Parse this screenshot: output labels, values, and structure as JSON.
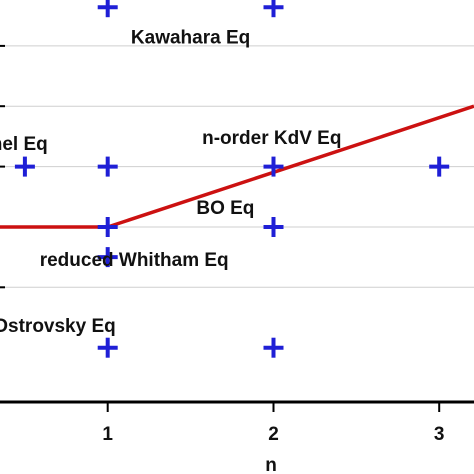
{
  "chart_data": {
    "type": "scatter",
    "title": "",
    "xlabel": "n",
    "ylabel": "",
    "xlim": [
      0.35,
      3.21
    ],
    "ylim": [
      -0.95,
      2.38
    ],
    "x_ticks": [
      {
        "value": 1,
        "label": "1"
      },
      {
        "value": 2,
        "label": "2"
      },
      {
        "value": 3,
        "label": "3"
      }
    ],
    "y_gridlines": [
      0,
      0.5,
      1,
      1.5,
      2
    ],
    "grid": "horizontal",
    "colors": {
      "markers": "#1f1fd6",
      "line": "#cc1111",
      "grid": "#cfcfcf",
      "axis": "#000000"
    },
    "points": [
      {
        "x": 1,
        "y": 2.32
      },
      {
        "x": 2,
        "y": 2.32
      },
      {
        "x": 0.5,
        "y": 1.0
      },
      {
        "x": 1,
        "y": 1.0
      },
      {
        "x": 2,
        "y": 1.0
      },
      {
        "x": 3,
        "y": 1.0
      },
      {
        "x": 1,
        "y": 0.5
      },
      {
        "x": 2,
        "y": 0.5
      },
      {
        "x": 1,
        "y": 0.25
      },
      {
        "x": 1,
        "y": -0.5
      },
      {
        "x": 2,
        "y": -0.5
      }
    ],
    "line": [
      {
        "x": 0.35,
        "y": 0.5
      },
      {
        "x": 1,
        "y": 0.5
      },
      {
        "x": 3.21,
        "y": 1.5
      }
    ],
    "annotations": [
      {
        "text": "Kawahara Eq",
        "x": 1.5,
        "y": 2.06
      },
      {
        "text": "mel Eq",
        "x": 0.45,
        "y": 1.18
      },
      {
        "text": "n-order KdV Eq",
        "x": 1.99,
        "y": 1.23
      },
      {
        "text": "BO Eq",
        "x": 1.71,
        "y": 0.65
      },
      {
        "text": "reduced Whitham Eq",
        "x": 1.16,
        "y": 0.22
      },
      {
        "text": "reduced Ostrovsky Eq",
        "x": 0.44,
        "y": -0.33
      }
    ]
  }
}
